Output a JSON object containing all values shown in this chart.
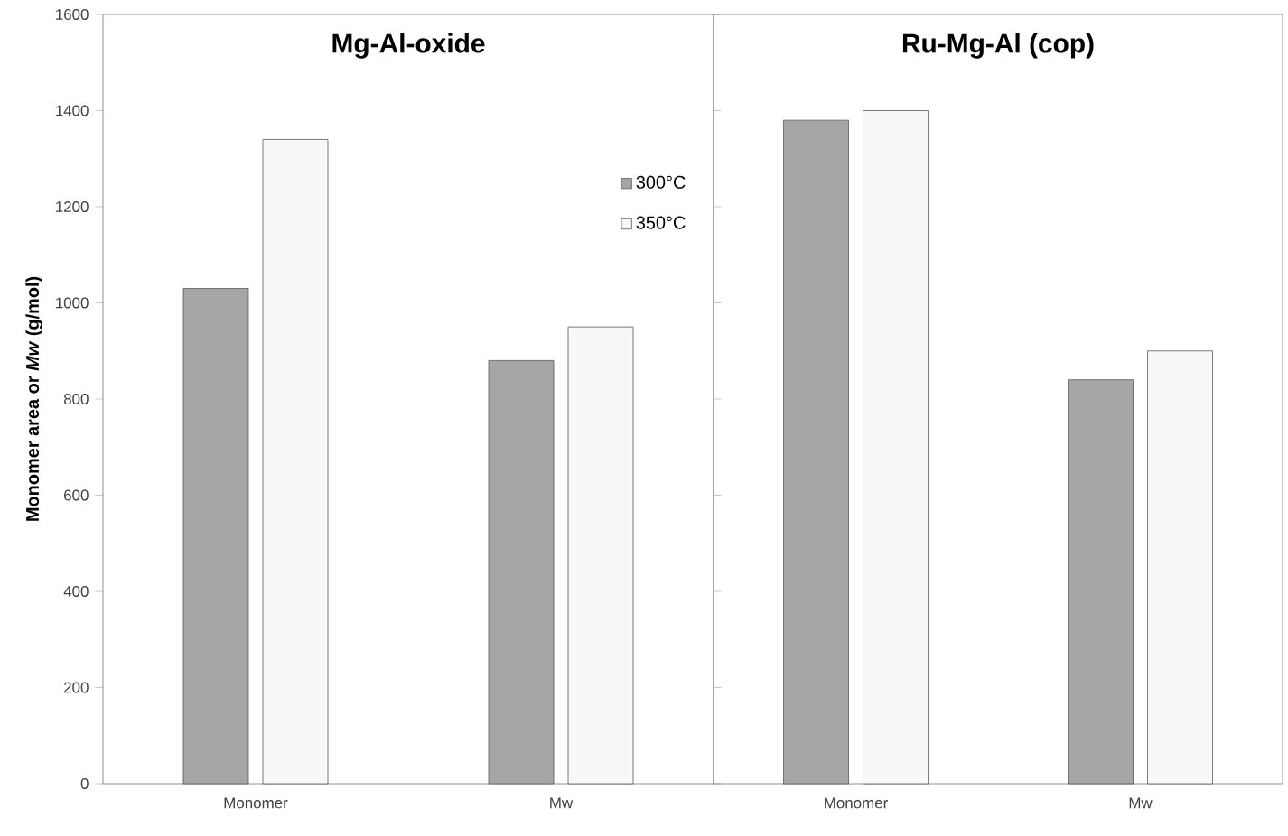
{
  "chart_data": [
    {
      "type": "bar",
      "title": "Mg-Al-oxide",
      "ylabel": "Monomer area or *Mw* (g/mol)",
      "categories": [
        "Monomer",
        "Mw"
      ],
      "series": [
        {
          "name": "300°C",
          "color": "#a6a6a6",
          "values": [
            1030,
            880
          ]
        },
        {
          "name": "350°C",
          "color": "#f8f8f8",
          "values": [
            1340,
            950
          ]
        }
      ],
      "ylim": [
        0,
        1600
      ],
      "yticks": [
        0,
        200,
        400,
        600,
        800,
        1000,
        1200,
        1400,
        1600
      ],
      "legend": "top right"
    },
    {
      "type": "bar",
      "title": "Ru-Mg-Al (cop)",
      "categories": [
        "Monomer",
        "Mw"
      ],
      "series": [
        {
          "color": "#a6a6a6",
          "values": [
            1380,
            840
          ]
        },
        {
          "color": "#f8f8f8",
          "values": [
            1400,
            900
          ]
        }
      ],
      "ylim": [
        0,
        1600
      ],
      "yticks": [
        0,
        200,
        400,
        600,
        800,
        1000,
        1200,
        1400,
        1600
      ],
      "tick_labels": "x"
    }
  ]
}
